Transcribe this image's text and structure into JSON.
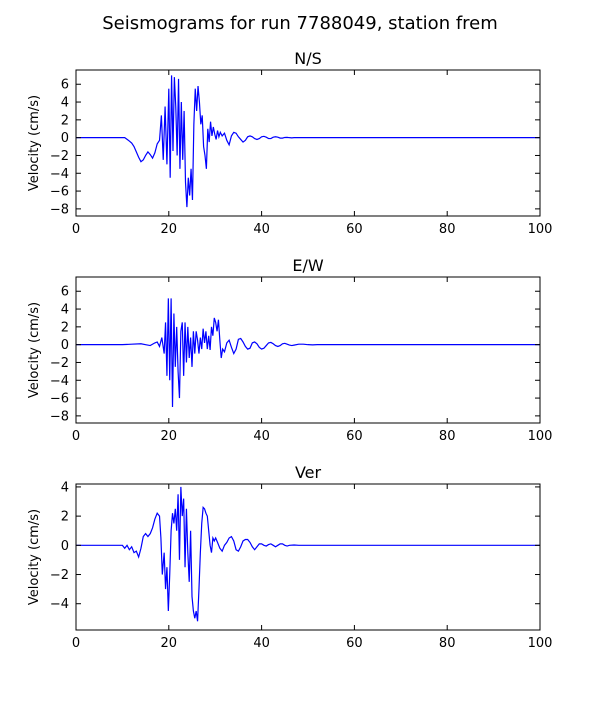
{
  "figure": {
    "title": "Seismograms for run 7788049, station frem"
  },
  "chart_data": [
    {
      "type": "line",
      "title": "N/S",
      "xlabel": "",
      "ylabel": "Velocity (cm/s)",
      "xlim": [
        0,
        100
      ],
      "ylim": [
        -8.8,
        7.6
      ],
      "xticks": [
        0,
        20,
        40,
        60,
        80,
        100
      ],
      "yticks": [
        -8,
        -6,
        -4,
        -2,
        0,
        2,
        4,
        6
      ],
      "grid": false,
      "series": [
        {
          "color": "#0000ff",
          "x": [
            0,
            10.5,
            11.3,
            12,
            12.5,
            13,
            13.5,
            14,
            14.5,
            15,
            15.5,
            16,
            16.5,
            17,
            17.5,
            18,
            18.4,
            18.8,
            19.2,
            19.6,
            20,
            20.3,
            20.6,
            20.9,
            21.2,
            21.5,
            21.8,
            22.1,
            22.4,
            22.7,
            23,
            23.3,
            23.6,
            23.9,
            24.2,
            24.5,
            24.8,
            25.1,
            25.4,
            25.7,
            26,
            26.3,
            26.6,
            26.9,
            27.2,
            27.5,
            27.8,
            28.1,
            28.4,
            28.7,
            29,
            29.3,
            29.6,
            29.9,
            30.2,
            30.5,
            30.8,
            31.1,
            31.5,
            32,
            32.5,
            33,
            33.5,
            34,
            34.5,
            35,
            35.5,
            36,
            36.5,
            37,
            37.5,
            38,
            38.5,
            39,
            39.5,
            40,
            40.5,
            41,
            41.5,
            42,
            42.5,
            43,
            43.5,
            44,
            44.5,
            45,
            45.5,
            46,
            46.5,
            47,
            47.5,
            48,
            48.5,
            49,
            50,
            52,
            55,
            60,
            100
          ],
          "y": [
            0,
            0,
            -0.3,
            -0.6,
            -1.0,
            -1.6,
            -2.2,
            -2.7,
            -2.5,
            -2.0,
            -1.6,
            -1.9,
            -2.3,
            -1.7,
            -0.7,
            -0.3,
            2.5,
            -2.5,
            3.5,
            -3.0,
            5.5,
            -4.5,
            7.0,
            -1.5,
            6.8,
            3.5,
            -2.0,
            6.6,
            -3.5,
            4.0,
            -2.5,
            3.0,
            -5.0,
            -7.8,
            -4.5,
            -6.5,
            -3.5,
            -7.0,
            1.5,
            5.5,
            3.0,
            5.8,
            4.0,
            1.5,
            2.5,
            -1.0,
            -2.0,
            -3.5,
            1.0,
            -0.5,
            1.8,
            0.2,
            1.2,
            0.4,
            -0.2,
            0.8,
            0.1,
            0.6,
            0.2,
            0.5,
            -0.3,
            -0.8,
            0.2,
            0.6,
            0.5,
            0.1,
            -0.2,
            -0.5,
            -0.3,
            0.1,
            0.2,
            0.1,
            -0.1,
            -0.2,
            -0.1,
            0.1,
            0.15,
            0.05,
            -0.1,
            -0.1,
            0.05,
            0.1,
            0.05,
            -0.05,
            -0.05,
            0.02,
            0.03,
            0.0,
            -0.02,
            0.0,
            0.01,
            0.0,
            0.0,
            0.0,
            0,
            0,
            0,
            0,
            0
          ]
        }
      ]
    },
    {
      "type": "line",
      "title": "E/W",
      "xlabel": "",
      "ylabel": "Velocity (cm/s)",
      "xlim": [
        0,
        100
      ],
      "ylim": [
        -8.8,
        7.6
      ],
      "xticks": [
        0,
        20,
        40,
        60,
        80,
        100
      ],
      "yticks": [
        -8,
        -6,
        -4,
        -2,
        0,
        2,
        4,
        6
      ],
      "grid": false,
      "series": [
        {
          "color": "#0000ff",
          "x": [
            0,
            10,
            12,
            14,
            15,
            16,
            17,
            17.5,
            18,
            18.5,
            19,
            19.3,
            19.6,
            19.9,
            20.2,
            20.5,
            20.8,
            21.1,
            21.4,
            21.7,
            22,
            22.3,
            22.6,
            22.9,
            23.2,
            23.5,
            23.8,
            24.1,
            24.4,
            24.7,
            25,
            25.3,
            25.6,
            25.9,
            26.2,
            26.5,
            26.8,
            27.1,
            27.4,
            27.7,
            28,
            28.3,
            28.6,
            28.9,
            29.2,
            29.5,
            29.8,
            30.1,
            30.4,
            30.7,
            31,
            31.3,
            31.6,
            32,
            32.5,
            33,
            33.5,
            34,
            34.5,
            35,
            35.5,
            36,
            36.5,
            37,
            37.5,
            38,
            38.5,
            39,
            39.5,
            40,
            40.5,
            41,
            41.5,
            42,
            42.5,
            43,
            43.5,
            44,
            44.5,
            45,
            45.5,
            46,
            46.5,
            47,
            48,
            49,
            50,
            51,
            52,
            53,
            55,
            60,
            100
          ],
          "y": [
            0,
            0,
            0.05,
            0.1,
            0.0,
            -0.1,
            0.2,
            0.3,
            -0.2,
            0.8,
            -1.0,
            2.5,
            -3.5,
            5.2,
            -4.0,
            5.2,
            -7.0,
            3.5,
            -2.5,
            2.0,
            -3.0,
            -6.0,
            1.5,
            2.5,
            -3.5,
            2.5,
            -2.0,
            2.0,
            -1.5,
            0.8,
            -2.5,
            1.5,
            -1.0,
            1.5,
            0.5,
            -1.0,
            0.8,
            -0.5,
            1.8,
            0.2,
            1.5,
            -0.5,
            1.0,
            -0.6,
            2.0,
            1.0,
            3.0,
            2.5,
            1.5,
            2.8,
            0.5,
            -1.5,
            -0.5,
            -0.8,
            0.2,
            0.5,
            -0.3,
            -1.0,
            -0.5,
            0.6,
            0.7,
            0.3,
            -0.2,
            -0.5,
            -0.4,
            0.2,
            0.3,
            0.1,
            -0.3,
            -0.5,
            -0.4,
            -0.1,
            0.2,
            0.25,
            0.1,
            -0.1,
            -0.2,
            -0.1,
            0.1,
            0.15,
            0.05,
            -0.05,
            -0.1,
            -0.05,
            0.05,
            0.05,
            0.0,
            -0.02,
            0.0,
            0.0,
            0,
            0,
            0
          ]
        }
      ]
    },
    {
      "type": "line",
      "title": "Ver",
      "xlabel": "",
      "ylabel": "Velocity (cm/s)",
      "xlim": [
        0,
        100
      ],
      "ylim": [
        -5.8,
        4.2
      ],
      "xticks": [
        0,
        20,
        40,
        60,
        80,
        100
      ],
      "yticks": [
        -4,
        -2,
        0,
        2,
        4
      ],
      "grid": false,
      "series": [
        {
          "color": "#0000ff",
          "x": [
            0,
            10,
            10.5,
            11,
            11.5,
            12,
            12.5,
            13,
            13.5,
            14,
            14.5,
            15,
            15.5,
            16,
            16.5,
            17,
            17.5,
            18,
            18.3,
            18.6,
            19,
            19.3,
            19.6,
            19.9,
            20.2,
            20.5,
            20.8,
            21.1,
            21.4,
            21.7,
            22,
            22.3,
            22.6,
            22.9,
            23.2,
            23.5,
            23.8,
            24.1,
            24.4,
            24.7,
            25,
            25.3,
            25.6,
            25.9,
            26.2,
            26.5,
            26.8,
            27.1,
            27.4,
            27.7,
            28,
            28.3,
            28.6,
            28.9,
            29.2,
            29.5,
            29.8,
            30.1,
            30.5,
            31,
            31.5,
            32,
            32.5,
            33,
            33.5,
            34,
            34.5,
            35,
            35.5,
            36,
            36.5,
            37,
            37.5,
            38,
            38.5,
            39,
            39.5,
            40,
            40.5,
            41,
            41.5,
            42,
            42.5,
            43,
            43.5,
            44,
            44.5,
            45,
            45.5,
            46,
            47,
            48,
            50,
            55,
            100
          ],
          "y": [
            0,
            0,
            -0.2,
            0.0,
            -0.3,
            -0.1,
            -0.5,
            -0.4,
            -0.8,
            -0.2,
            0.6,
            0.8,
            0.6,
            0.8,
            1.2,
            1.8,
            2.2,
            2.0,
            0.5,
            -2.0,
            -0.5,
            -3.0,
            -1.5,
            -4.5,
            -2.0,
            1.0,
            2.2,
            1.5,
            2.5,
            1.0,
            3.5,
            -1.0,
            4.0,
            2.0,
            3.2,
            -1.5,
            2.5,
            -0.5,
            -2.5,
            1.0,
            -3.5,
            -4.5,
            -5.0,
            -4.5,
            -5.2,
            -3.0,
            -0.5,
            1.5,
            2.6,
            2.5,
            2.2,
            2.0,
            1.0,
            0.0,
            -0.5,
            0.5,
            0.3,
            0.5,
            0.2,
            -0.2,
            -0.4,
            0.0,
            0.2,
            0.5,
            0.6,
            0.3,
            -0.3,
            -0.4,
            -0.1,
            0.3,
            0.4,
            0.4,
            0.2,
            -0.1,
            -0.3,
            -0.1,
            0.1,
            0.1,
            0.0,
            -0.05,
            0.05,
            0.1,
            0.0,
            -0.1,
            0.0,
            0.1,
            0.1,
            0.0,
            -0.05,
            0.0,
            0.02,
            0.0,
            0,
            0,
            0
          ]
        }
      ]
    }
  ]
}
